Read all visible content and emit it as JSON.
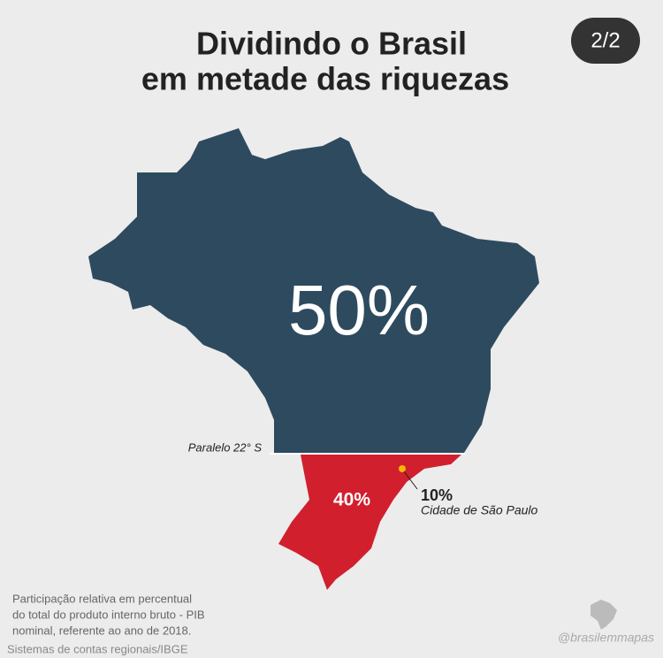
{
  "header": {
    "title_line1": "Dividindo o Brasil",
    "title_line2": "em metade das riquezas",
    "page": "2/2"
  },
  "map": {
    "north_share": "50%",
    "south_share": "40%",
    "city_share": "10%",
    "city_name": "Cidade de São Paulo",
    "parallel": "Paralelo 22° S"
  },
  "footer": {
    "note_line1": "Participação relativa em percentual",
    "note_line2": "do total do produto interno bruto - PIB",
    "note_line3": "nominal, referente ao ano de 2018.",
    "source": "Sistemas de contas regionais/IBGE",
    "handle": "@brasilemmapas"
  }
}
